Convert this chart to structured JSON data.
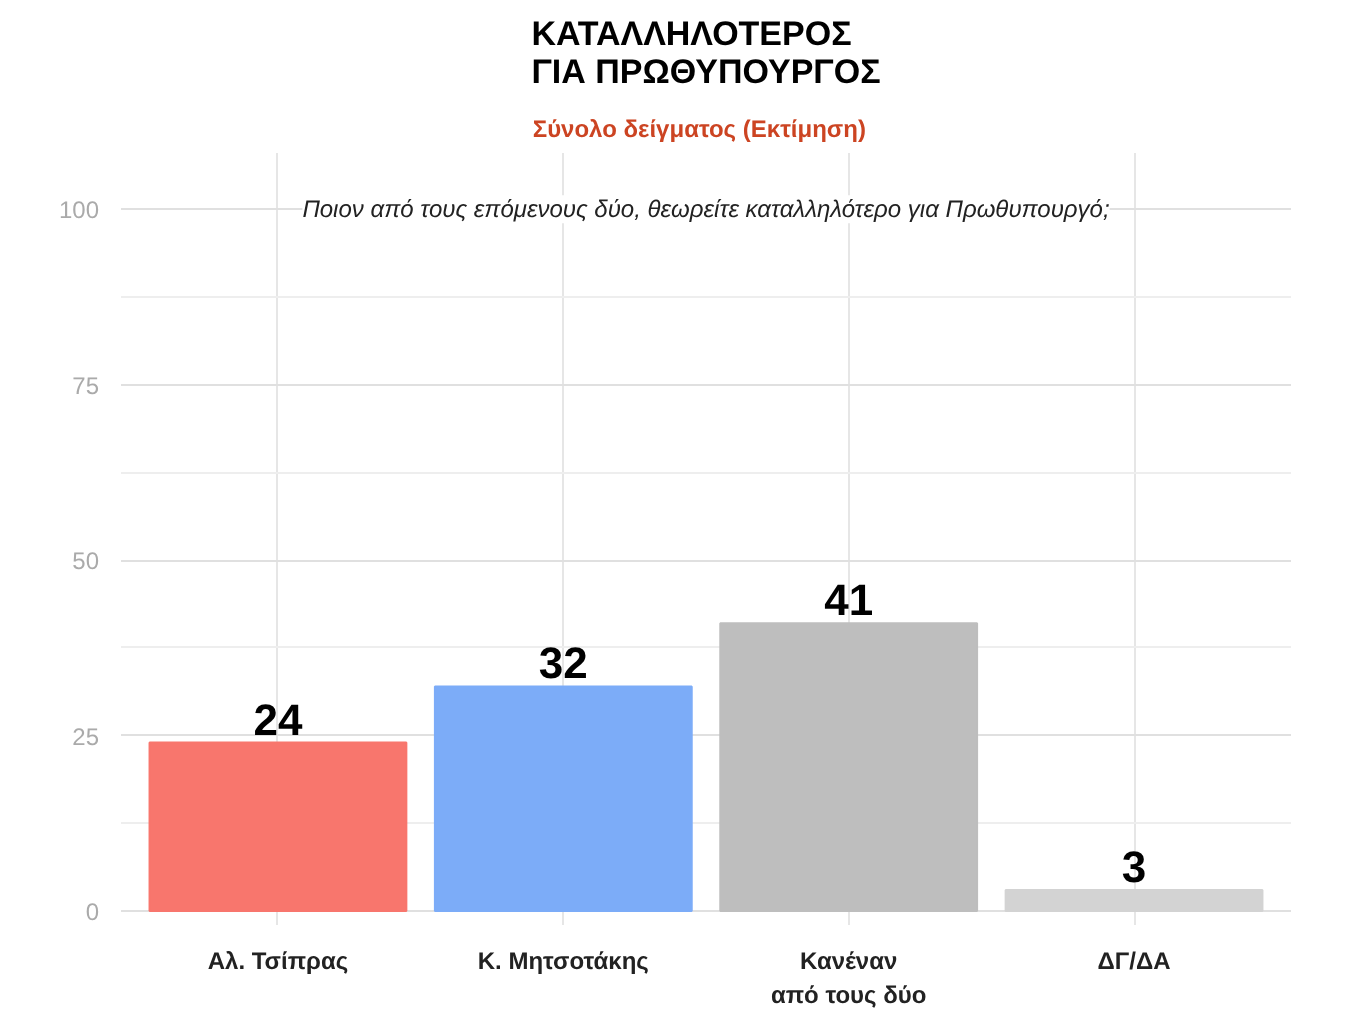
{
  "chart_data": {
    "type": "bar",
    "title": "ΚΑΤΑΛΛΗΛΟΤΕΡΟΣ\nΓΙΑ ΠΡΩΘΥΠΟΥΡΓΟΣ",
    "subtitle": "Σύνολο δείγματος   (Εκτίμηση)",
    "annotations": [
      "Ποιον από τους επόμενους δύο, θεωρείτε καταλληλότερο για Πρωθυπουργό;"
    ],
    "categories": [
      "Αλ. Τσίπρας",
      "Κ. Μητσοτάκης",
      "Κανέναν\nαπό τους δύο",
      "ΔΓ/ΔΑ"
    ],
    "values": [
      24,
      32,
      41,
      3
    ],
    "colors": [
      "#f8766d",
      "#7cacf8",
      "#bebebe",
      "#d3d3d3"
    ],
    "ylim": [
      0,
      100
    ],
    "yticks": [
      0,
      25,
      50,
      75,
      100
    ],
    "grid": true,
    "data_labels": true
  }
}
